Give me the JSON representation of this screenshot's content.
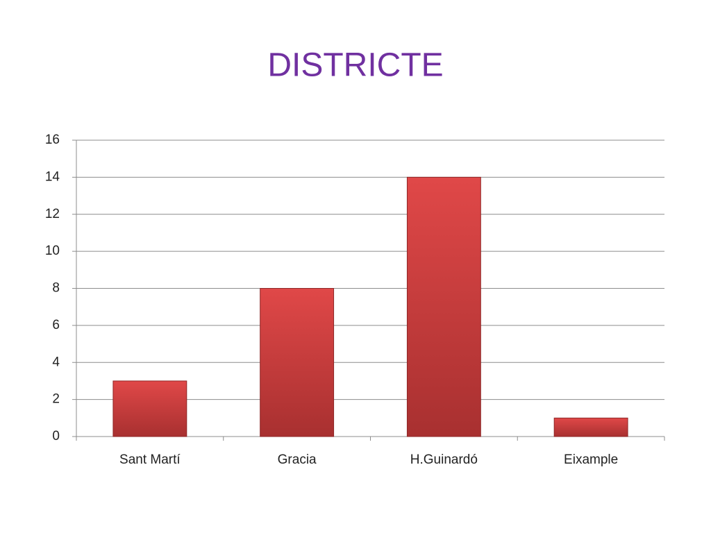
{
  "chart_data": {
    "type": "bar",
    "title": "DISTRICTE",
    "categories": [
      "Sant Martí",
      "Gracia",
      "H.Guinardó",
      "Eixample"
    ],
    "values": [
      3,
      8,
      14,
      1
    ],
    "color": "#d64141",
    "ylim": [
      0,
      16
    ],
    "yticks": [
      0,
      2,
      4,
      6,
      8,
      10,
      12,
      14,
      16
    ],
    "grid": true
  }
}
